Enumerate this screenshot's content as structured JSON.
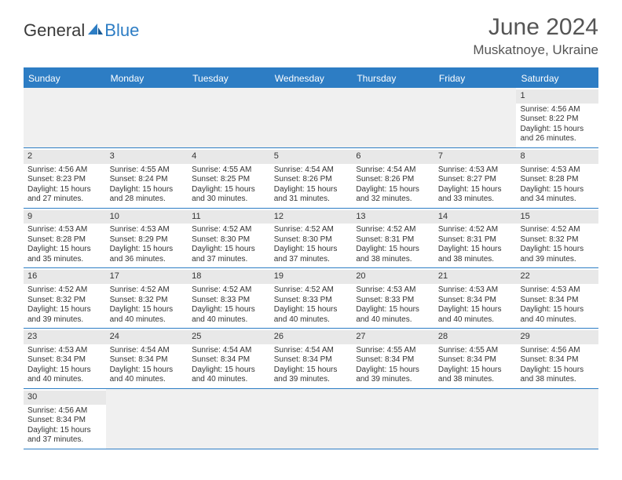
{
  "logo": {
    "part1": "General",
    "part2": "Blue"
  },
  "title": "June 2024",
  "location": "Muskatnoye, Ukraine",
  "colors": {
    "header_bg": "#2d7dc4",
    "header_text": "#ffffff",
    "daynum_bg": "#e8e8e8",
    "empty_bg": "#f0f0f0",
    "text": "#333333",
    "border": "#2d7dc4"
  },
  "typography": {
    "title_fontsize": 30,
    "location_fontsize": 17,
    "header_fontsize": 12,
    "cell_fontsize": 10
  },
  "day_labels": [
    "Sunday",
    "Monday",
    "Tuesday",
    "Wednesday",
    "Thursday",
    "Friday",
    "Saturday"
  ],
  "weeks": [
    [
      null,
      null,
      null,
      null,
      null,
      null,
      {
        "n": "1",
        "sr": "Sunrise: 4:56 AM",
        "ss": "Sunset: 8:22 PM",
        "d1": "Daylight: 15 hours",
        "d2": "and 26 minutes."
      }
    ],
    [
      {
        "n": "2",
        "sr": "Sunrise: 4:56 AM",
        "ss": "Sunset: 8:23 PM",
        "d1": "Daylight: 15 hours",
        "d2": "and 27 minutes."
      },
      {
        "n": "3",
        "sr": "Sunrise: 4:55 AM",
        "ss": "Sunset: 8:24 PM",
        "d1": "Daylight: 15 hours",
        "d2": "and 28 minutes."
      },
      {
        "n": "4",
        "sr": "Sunrise: 4:55 AM",
        "ss": "Sunset: 8:25 PM",
        "d1": "Daylight: 15 hours",
        "d2": "and 30 minutes."
      },
      {
        "n": "5",
        "sr": "Sunrise: 4:54 AM",
        "ss": "Sunset: 8:26 PM",
        "d1": "Daylight: 15 hours",
        "d2": "and 31 minutes."
      },
      {
        "n": "6",
        "sr": "Sunrise: 4:54 AM",
        "ss": "Sunset: 8:26 PM",
        "d1": "Daylight: 15 hours",
        "d2": "and 32 minutes."
      },
      {
        "n": "7",
        "sr": "Sunrise: 4:53 AM",
        "ss": "Sunset: 8:27 PM",
        "d1": "Daylight: 15 hours",
        "d2": "and 33 minutes."
      },
      {
        "n": "8",
        "sr": "Sunrise: 4:53 AM",
        "ss": "Sunset: 8:28 PM",
        "d1": "Daylight: 15 hours",
        "d2": "and 34 minutes."
      }
    ],
    [
      {
        "n": "9",
        "sr": "Sunrise: 4:53 AM",
        "ss": "Sunset: 8:28 PM",
        "d1": "Daylight: 15 hours",
        "d2": "and 35 minutes."
      },
      {
        "n": "10",
        "sr": "Sunrise: 4:53 AM",
        "ss": "Sunset: 8:29 PM",
        "d1": "Daylight: 15 hours",
        "d2": "and 36 minutes."
      },
      {
        "n": "11",
        "sr": "Sunrise: 4:52 AM",
        "ss": "Sunset: 8:30 PM",
        "d1": "Daylight: 15 hours",
        "d2": "and 37 minutes."
      },
      {
        "n": "12",
        "sr": "Sunrise: 4:52 AM",
        "ss": "Sunset: 8:30 PM",
        "d1": "Daylight: 15 hours",
        "d2": "and 37 minutes."
      },
      {
        "n": "13",
        "sr": "Sunrise: 4:52 AM",
        "ss": "Sunset: 8:31 PM",
        "d1": "Daylight: 15 hours",
        "d2": "and 38 minutes."
      },
      {
        "n": "14",
        "sr": "Sunrise: 4:52 AM",
        "ss": "Sunset: 8:31 PM",
        "d1": "Daylight: 15 hours",
        "d2": "and 38 minutes."
      },
      {
        "n": "15",
        "sr": "Sunrise: 4:52 AM",
        "ss": "Sunset: 8:32 PM",
        "d1": "Daylight: 15 hours",
        "d2": "and 39 minutes."
      }
    ],
    [
      {
        "n": "16",
        "sr": "Sunrise: 4:52 AM",
        "ss": "Sunset: 8:32 PM",
        "d1": "Daylight: 15 hours",
        "d2": "and 39 minutes."
      },
      {
        "n": "17",
        "sr": "Sunrise: 4:52 AM",
        "ss": "Sunset: 8:32 PM",
        "d1": "Daylight: 15 hours",
        "d2": "and 40 minutes."
      },
      {
        "n": "18",
        "sr": "Sunrise: 4:52 AM",
        "ss": "Sunset: 8:33 PM",
        "d1": "Daylight: 15 hours",
        "d2": "and 40 minutes."
      },
      {
        "n": "19",
        "sr": "Sunrise: 4:52 AM",
        "ss": "Sunset: 8:33 PM",
        "d1": "Daylight: 15 hours",
        "d2": "and 40 minutes."
      },
      {
        "n": "20",
        "sr": "Sunrise: 4:53 AM",
        "ss": "Sunset: 8:33 PM",
        "d1": "Daylight: 15 hours",
        "d2": "and 40 minutes."
      },
      {
        "n": "21",
        "sr": "Sunrise: 4:53 AM",
        "ss": "Sunset: 8:34 PM",
        "d1": "Daylight: 15 hours",
        "d2": "and 40 minutes."
      },
      {
        "n": "22",
        "sr": "Sunrise: 4:53 AM",
        "ss": "Sunset: 8:34 PM",
        "d1": "Daylight: 15 hours",
        "d2": "and 40 minutes."
      }
    ],
    [
      {
        "n": "23",
        "sr": "Sunrise: 4:53 AM",
        "ss": "Sunset: 8:34 PM",
        "d1": "Daylight: 15 hours",
        "d2": "and 40 minutes."
      },
      {
        "n": "24",
        "sr": "Sunrise: 4:54 AM",
        "ss": "Sunset: 8:34 PM",
        "d1": "Daylight: 15 hours",
        "d2": "and 40 minutes."
      },
      {
        "n": "25",
        "sr": "Sunrise: 4:54 AM",
        "ss": "Sunset: 8:34 PM",
        "d1": "Daylight: 15 hours",
        "d2": "and 40 minutes."
      },
      {
        "n": "26",
        "sr": "Sunrise: 4:54 AM",
        "ss": "Sunset: 8:34 PM",
        "d1": "Daylight: 15 hours",
        "d2": "and 39 minutes."
      },
      {
        "n": "27",
        "sr": "Sunrise: 4:55 AM",
        "ss": "Sunset: 8:34 PM",
        "d1": "Daylight: 15 hours",
        "d2": "and 39 minutes."
      },
      {
        "n": "28",
        "sr": "Sunrise: 4:55 AM",
        "ss": "Sunset: 8:34 PM",
        "d1": "Daylight: 15 hours",
        "d2": "and 38 minutes."
      },
      {
        "n": "29",
        "sr": "Sunrise: 4:56 AM",
        "ss": "Sunset: 8:34 PM",
        "d1": "Daylight: 15 hours",
        "d2": "and 38 minutes."
      }
    ],
    [
      {
        "n": "30",
        "sr": "Sunrise: 4:56 AM",
        "ss": "Sunset: 8:34 PM",
        "d1": "Daylight: 15 hours",
        "d2": "and 37 minutes."
      },
      null,
      null,
      null,
      null,
      null,
      null
    ]
  ]
}
